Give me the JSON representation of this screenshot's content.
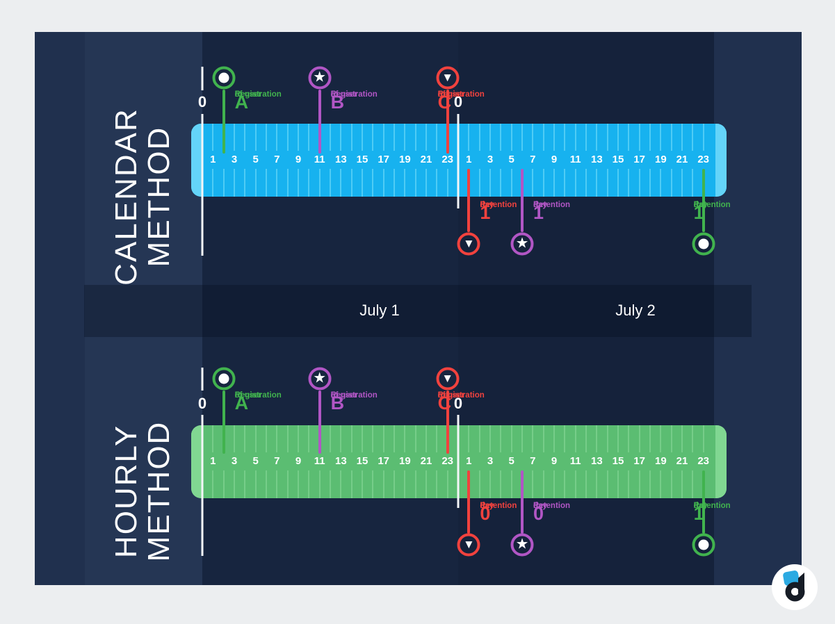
{
  "colors": {
    "page_bg": "#eceef0",
    "panel_bg": "#20304e",
    "panel_strip": "#253654",
    "day_column_1": "#17253f",
    "day_column_2": "#15223b",
    "band_overlay": "rgba(5,15,32,0.35)",
    "green": "#41b34e",
    "purple": "#b156c5",
    "red": "#f1423e",
    "white": "#ffffff"
  },
  "axis": {
    "hour_labels": [
      "1",
      "3",
      "5",
      "7",
      "9",
      "11",
      "13",
      "15",
      "17",
      "19",
      "21",
      "23"
    ],
    "hours_per_day": 24,
    "days": 2
  },
  "dates": [
    {
      "label": "July 1"
    },
    {
      "label": "July 2"
    }
  ],
  "methods": [
    {
      "name": "calendar-method",
      "title": "CALENDAR\nMETHOD",
      "bar_color": "#17b2ef",
      "bar_cap_color": "#64d4f9",
      "bar_tick_color": "#4fccf5",
      "day_start_labels": [
        "0",
        "0"
      ],
      "registrations": [
        {
          "user": "A",
          "lines": [
            "Registration",
            "of user"
          ],
          "big": "A",
          "shape": "circle",
          "color": "green",
          "day": 0,
          "hour": 2,
          "side": "right"
        },
        {
          "user": "B",
          "lines": [
            "Registration",
            "of user"
          ],
          "big": "B",
          "shape": "star",
          "color": "purple",
          "day": 0,
          "hour": 11,
          "side": "right"
        },
        {
          "user": "C",
          "lines": [
            "Registration",
            "of user"
          ],
          "big": "C",
          "shape": "triangle",
          "color": "red",
          "day": 0,
          "hour": 23,
          "side": "left"
        }
      ],
      "returns": [
        {
          "user": "C",
          "lines": [
            "Retention",
            "day"
          ],
          "big": "1",
          "shape": "triangle",
          "color": "red",
          "day": 1,
          "hour": 1,
          "side": "right"
        },
        {
          "user": "B",
          "lines": [
            "Retention",
            "day"
          ],
          "big": "1",
          "shape": "star",
          "color": "purple",
          "day": 1,
          "hour": 6,
          "side": "right"
        },
        {
          "user": "A",
          "lines": [
            "Retention",
            "day"
          ],
          "big": "1",
          "shape": "circle",
          "color": "green",
          "day": 1,
          "hour": 23,
          "side": "left"
        }
      ]
    },
    {
      "name": "hourly-method",
      "title": "HOURLY\nMETHOD",
      "bar_color": "#5bbd72",
      "bar_cap_color": "#81d792",
      "bar_tick_color": "#76cd89",
      "day_start_labels": [
        "0",
        "0"
      ],
      "registrations": [
        {
          "user": "A",
          "lines": [
            "Registration",
            "of user"
          ],
          "big": "A",
          "shape": "circle",
          "color": "green",
          "day": 0,
          "hour": 2,
          "side": "right"
        },
        {
          "user": "B",
          "lines": [
            "Registration",
            "of user"
          ],
          "big": "B",
          "shape": "star",
          "color": "purple",
          "day": 0,
          "hour": 11,
          "side": "right"
        },
        {
          "user": "C",
          "lines": [
            "Registration",
            "of user"
          ],
          "big": "C",
          "shape": "triangle",
          "color": "red",
          "day": 0,
          "hour": 23,
          "side": "left"
        }
      ],
      "returns": [
        {
          "user": "C",
          "lines": [
            "Retention",
            "day"
          ],
          "big": "0",
          "shape": "triangle",
          "color": "red",
          "day": 1,
          "hour": 1,
          "side": "right"
        },
        {
          "user": "B",
          "lines": [
            "Retention",
            "day"
          ],
          "big": "0",
          "shape": "star",
          "color": "purple",
          "day": 1,
          "hour": 6,
          "side": "right"
        },
        {
          "user": "A",
          "lines": [
            "Retention",
            "day"
          ],
          "big": "1",
          "shape": "circle",
          "color": "green",
          "day": 1,
          "hour": 23,
          "side": "left"
        }
      ]
    }
  ],
  "logo": {
    "letter": "d",
    "circle_color": "#ffffff",
    "accent_color": "#2caae2",
    "letter_color": "#161c26"
  }
}
